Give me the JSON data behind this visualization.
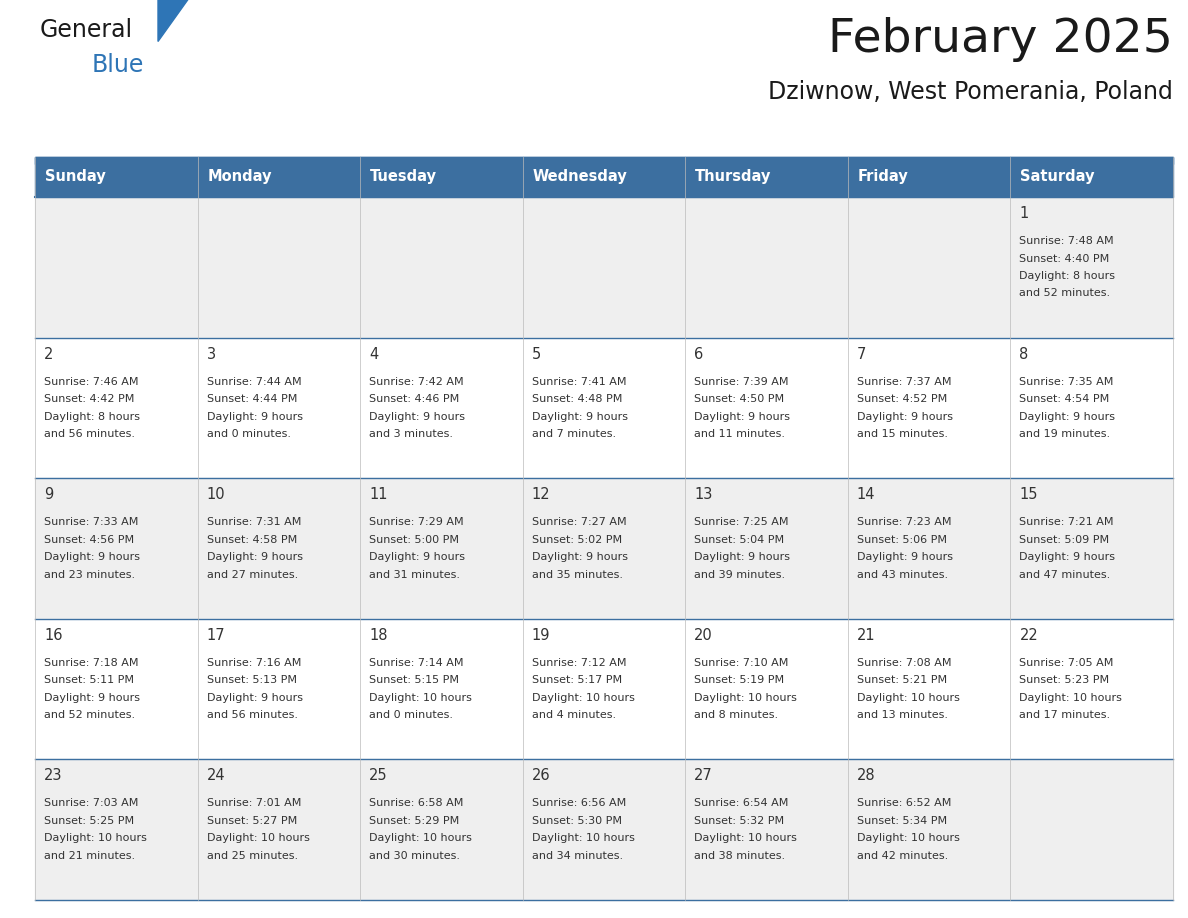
{
  "title": "February 2025",
  "subtitle": "Dziwnow, West Pomerania, Poland",
  "days_of_week": [
    "Sunday",
    "Monday",
    "Tuesday",
    "Wednesday",
    "Thursday",
    "Friday",
    "Saturday"
  ],
  "header_bg": "#3c6fa0",
  "header_text": "#ffffff",
  "row_bg_odd": "#efefef",
  "row_bg_even": "#ffffff",
  "separator_color": "#3c6fa0",
  "grid_color": "#bbbbbb",
  "title_color": "#1a1a1a",
  "subtitle_color": "#1a1a1a",
  "cell_text_color": "#333333",
  "day_num_color": "#333333",
  "logo_general_color": "#1a1a1a",
  "logo_blue_color": "#2e75b6",
  "logo_triangle_color": "#2e75b6",
  "calendar_data": [
    {
      "day": 1,
      "col": 6,
      "row": 0,
      "sunrise": "7:48 AM",
      "sunset": "4:40 PM",
      "daylight_h": "8 hours",
      "daylight_m": "52 minutes."
    },
    {
      "day": 2,
      "col": 0,
      "row": 1,
      "sunrise": "7:46 AM",
      "sunset": "4:42 PM",
      "daylight_h": "8 hours",
      "daylight_m": "56 minutes."
    },
    {
      "day": 3,
      "col": 1,
      "row": 1,
      "sunrise": "7:44 AM",
      "sunset": "4:44 PM",
      "daylight_h": "9 hours",
      "daylight_m": "0 minutes."
    },
    {
      "day": 4,
      "col": 2,
      "row": 1,
      "sunrise": "7:42 AM",
      "sunset": "4:46 PM",
      "daylight_h": "9 hours",
      "daylight_m": "3 minutes."
    },
    {
      "day": 5,
      "col": 3,
      "row": 1,
      "sunrise": "7:41 AM",
      "sunset": "4:48 PM",
      "daylight_h": "9 hours",
      "daylight_m": "7 minutes."
    },
    {
      "day": 6,
      "col": 4,
      "row": 1,
      "sunrise": "7:39 AM",
      "sunset": "4:50 PM",
      "daylight_h": "9 hours",
      "daylight_m": "11 minutes."
    },
    {
      "day": 7,
      "col": 5,
      "row": 1,
      "sunrise": "7:37 AM",
      "sunset": "4:52 PM",
      "daylight_h": "9 hours",
      "daylight_m": "15 minutes."
    },
    {
      "day": 8,
      "col": 6,
      "row": 1,
      "sunrise": "7:35 AM",
      "sunset": "4:54 PM",
      "daylight_h": "9 hours",
      "daylight_m": "19 minutes."
    },
    {
      "day": 9,
      "col": 0,
      "row": 2,
      "sunrise": "7:33 AM",
      "sunset": "4:56 PM",
      "daylight_h": "9 hours",
      "daylight_m": "23 minutes."
    },
    {
      "day": 10,
      "col": 1,
      "row": 2,
      "sunrise": "7:31 AM",
      "sunset": "4:58 PM",
      "daylight_h": "9 hours",
      "daylight_m": "27 minutes."
    },
    {
      "day": 11,
      "col": 2,
      "row": 2,
      "sunrise": "7:29 AM",
      "sunset": "5:00 PM",
      "daylight_h": "9 hours",
      "daylight_m": "31 minutes."
    },
    {
      "day": 12,
      "col": 3,
      "row": 2,
      "sunrise": "7:27 AM",
      "sunset": "5:02 PM",
      "daylight_h": "9 hours",
      "daylight_m": "35 minutes."
    },
    {
      "day": 13,
      "col": 4,
      "row": 2,
      "sunrise": "7:25 AM",
      "sunset": "5:04 PM",
      "daylight_h": "9 hours",
      "daylight_m": "39 minutes."
    },
    {
      "day": 14,
      "col": 5,
      "row": 2,
      "sunrise": "7:23 AM",
      "sunset": "5:06 PM",
      "daylight_h": "9 hours",
      "daylight_m": "43 minutes."
    },
    {
      "day": 15,
      "col": 6,
      "row": 2,
      "sunrise": "7:21 AM",
      "sunset": "5:09 PM",
      "daylight_h": "9 hours",
      "daylight_m": "47 minutes."
    },
    {
      "day": 16,
      "col": 0,
      "row": 3,
      "sunrise": "7:18 AM",
      "sunset": "5:11 PM",
      "daylight_h": "9 hours",
      "daylight_m": "52 minutes."
    },
    {
      "day": 17,
      "col": 1,
      "row": 3,
      "sunrise": "7:16 AM",
      "sunset": "5:13 PM",
      "daylight_h": "9 hours",
      "daylight_m": "56 minutes."
    },
    {
      "day": 18,
      "col": 2,
      "row": 3,
      "sunrise": "7:14 AM",
      "sunset": "5:15 PM",
      "daylight_h": "10 hours",
      "daylight_m": "0 minutes."
    },
    {
      "day": 19,
      "col": 3,
      "row": 3,
      "sunrise": "7:12 AM",
      "sunset": "5:17 PM",
      "daylight_h": "10 hours",
      "daylight_m": "4 minutes."
    },
    {
      "day": 20,
      "col": 4,
      "row": 3,
      "sunrise": "7:10 AM",
      "sunset": "5:19 PM",
      "daylight_h": "10 hours",
      "daylight_m": "8 minutes."
    },
    {
      "day": 21,
      "col": 5,
      "row": 3,
      "sunrise": "7:08 AM",
      "sunset": "5:21 PM",
      "daylight_h": "10 hours",
      "daylight_m": "13 minutes."
    },
    {
      "day": 22,
      "col": 6,
      "row": 3,
      "sunrise": "7:05 AM",
      "sunset": "5:23 PM",
      "daylight_h": "10 hours",
      "daylight_m": "17 minutes."
    },
    {
      "day": 23,
      "col": 0,
      "row": 4,
      "sunrise": "7:03 AM",
      "sunset": "5:25 PM",
      "daylight_h": "10 hours",
      "daylight_m": "21 minutes."
    },
    {
      "day": 24,
      "col": 1,
      "row": 4,
      "sunrise": "7:01 AM",
      "sunset": "5:27 PM",
      "daylight_h": "10 hours",
      "daylight_m": "25 minutes."
    },
    {
      "day": 25,
      "col": 2,
      "row": 4,
      "sunrise": "6:58 AM",
      "sunset": "5:29 PM",
      "daylight_h": "10 hours",
      "daylight_m": "30 minutes."
    },
    {
      "day": 26,
      "col": 3,
      "row": 4,
      "sunrise": "6:56 AM",
      "sunset": "5:30 PM",
      "daylight_h": "10 hours",
      "daylight_m": "34 minutes."
    },
    {
      "day": 27,
      "col": 4,
      "row": 4,
      "sunrise": "6:54 AM",
      "sunset": "5:32 PM",
      "daylight_h": "10 hours",
      "daylight_m": "38 minutes."
    },
    {
      "day": 28,
      "col": 5,
      "row": 4,
      "sunrise": "6:52 AM",
      "sunset": "5:34 PM",
      "daylight_h": "10 hours",
      "daylight_m": "42 minutes."
    }
  ],
  "num_rows": 5
}
